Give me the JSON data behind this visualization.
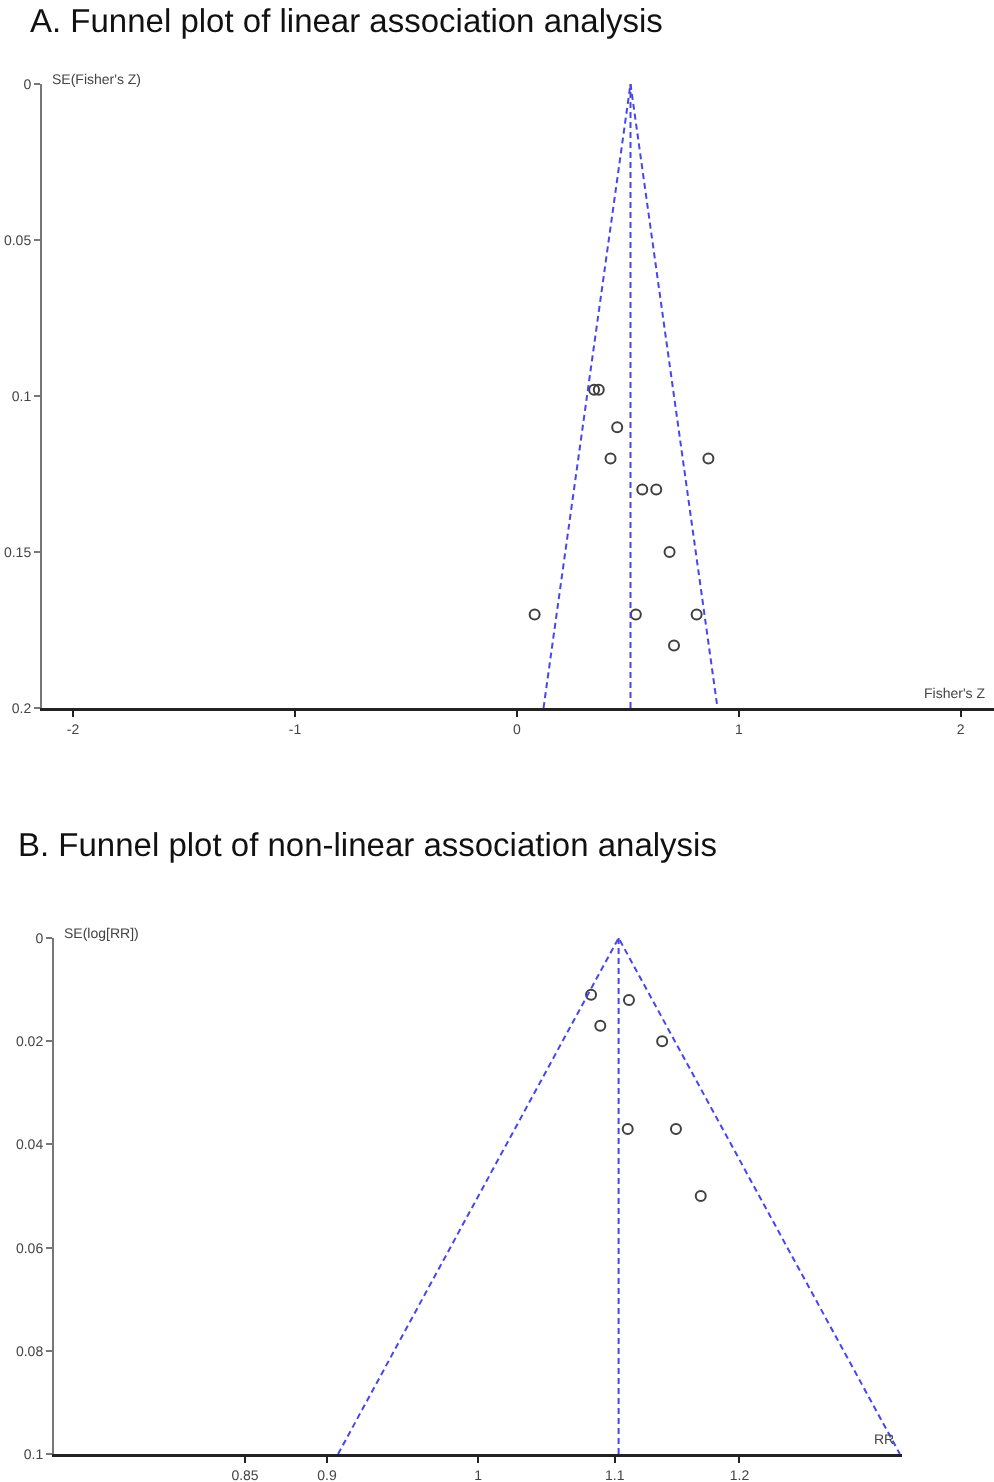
{
  "chart_data": [
    {
      "type": "scatter",
      "title": "A. Funnel plot of linear association analysis",
      "xlabel": "Fisher's Z",
      "ylabel": "SE(Fisher's Z)",
      "xlim": [
        -2.14,
        2.15
      ],
      "xticks": [
        -2,
        -1,
        0,
        1,
        2
      ],
      "ylim": [
        0.2,
        0
      ],
      "yticks": [
        0,
        0.05,
        0.1,
        0.15,
        0.2
      ],
      "series": [
        {
          "color": "#404040",
          "marker": "circle",
          "x": [
            0.348,
            0.369,
            0.452,
            0.422,
            0.863,
            0.565,
            0.628,
            0.688,
            0.08,
            0.536,
            0.81,
            0.708
          ],
          "values": [
            0.098,
            0.098,
            0.11,
            0.12,
            0.12,
            0.13,
            0.13,
            0.15,
            0.17,
            0.17,
            0.17,
            0.18
          ]
        },
        {
          "type": "line",
          "color": "#4646f0",
          "line_style": "dashed",
          "x": [
            0.12,
            0.512,
            0.904
          ],
          "values": [
            0.2,
            0,
            0.2
          ]
        }
      ],
      "ref_lines": [
        {
          "axis": "x",
          "value": 0.512,
          "color": "#4646f0",
          "line_style": "dashed"
        }
      ]
    },
    {
      "type": "scatter",
      "title": "B. Funnel plot of non-linear association analysis",
      "xlabel": "RR",
      "ylabel": "SE(log[RR])",
      "log": "x",
      "xlim": [
        0.744,
        1.344
      ],
      "xticks": [
        0.85,
        0.9,
        1,
        1.1,
        1.2
      ],
      "ylim": [
        0.1,
        0
      ],
      "yticks": [
        0,
        0.02,
        0.04,
        0.06,
        0.08,
        0.1
      ],
      "series": [
        {
          "color": "#404040",
          "marker": "circle",
          "x": [
            1.082,
            1.111,
            1.089,
            1.137,
            1.11,
            1.148,
            1.168
          ],
          "values": [
            0.011,
            0.012,
            0.017,
            0.02,
            0.037,
            0.037,
            0.05
          ]
        },
        {
          "type": "line",
          "color": "#4646f0",
          "line_style": "dashed",
          "x": [
            0.907,
            1.103,
            1.342
          ],
          "values": [
            0.1,
            0,
            0.1
          ]
        }
      ],
      "ref_lines": [
        {
          "axis": "x",
          "value": 1.103,
          "color": "#4646f0",
          "line_style": "dashed"
        }
      ]
    }
  ]
}
